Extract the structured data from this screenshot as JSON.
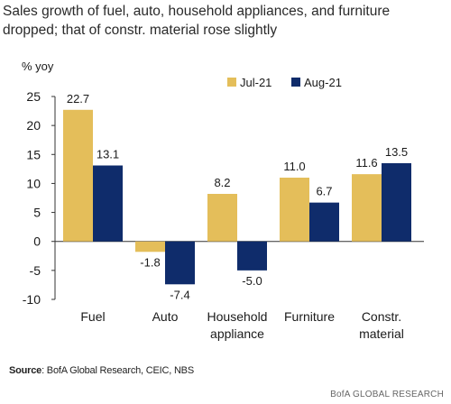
{
  "title": "Sales growth of fuel, auto, household appliances, and furniture dropped; that of constr. material rose slightly",
  "source_label": "Source",
  "source_text": ": BofA Global Research, CEIC, NBS",
  "brand": "BofA GLOBAL RESEARCH",
  "chart_data": {
    "type": "bar",
    "ylabel": "% yoy",
    "xlabel": "",
    "ylim": [
      -10,
      25
    ],
    "yticks": [
      -10,
      -5,
      0,
      5,
      10,
      15,
      20,
      25
    ],
    "grid": false,
    "legend_position": "top-right",
    "categories": [
      [
        "Fuel"
      ],
      [
        "Auto"
      ],
      [
        "Household",
        "appliance"
      ],
      [
        "Furniture"
      ],
      [
        "Constr.",
        "material"
      ]
    ],
    "series": [
      {
        "name": "Jul-21",
        "color": "#E4BE5A",
        "values": [
          22.7,
          -1.8,
          8.2,
          11.0,
          11.6
        ],
        "labels": [
          "22.7",
          "-1.8",
          "8.2",
          "11.0",
          "11.6"
        ]
      },
      {
        "name": "Aug-21",
        "color": "#0F2C6B",
        "values": [
          13.1,
          -7.4,
          -5.0,
          6.7,
          13.5
        ],
        "labels": [
          "13.1",
          "-7.4",
          "-5.0",
          "6.7",
          "13.5"
        ]
      }
    ]
  }
}
